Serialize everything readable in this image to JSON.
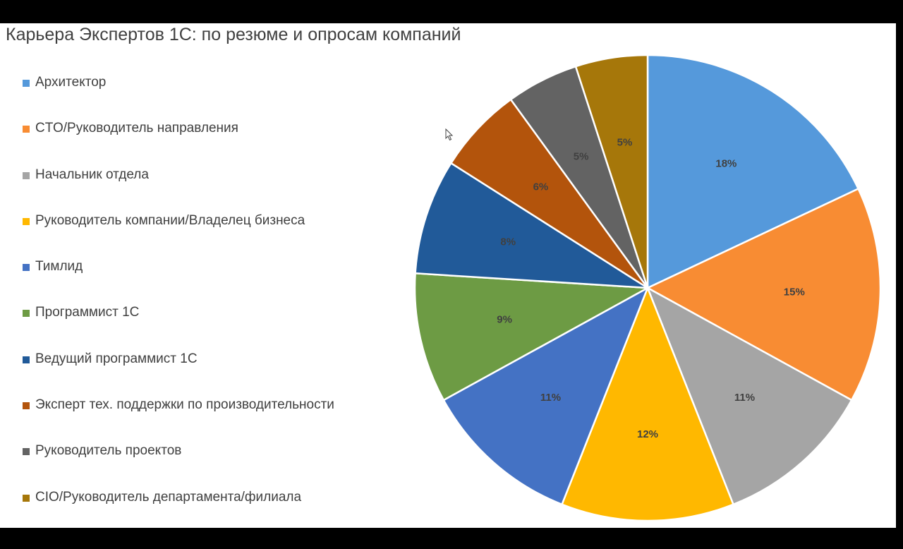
{
  "chart_data": {
    "type": "pie",
    "title": "Карьера Экспертов 1С: по резюме и опросам компаний",
    "legend_position": "left",
    "slices": [
      {
        "label": "Архитектор",
        "value": 18,
        "display": "18%",
        "color": "#5599DB"
      },
      {
        "label": "CTO/Руководитель направления",
        "value": 15,
        "display": "15%",
        "color": "#F88C33"
      },
      {
        "label": "Начальник отдела",
        "value": 11,
        "display": "11%",
        "color": "#A5A5A5"
      },
      {
        "label": "Руководитель компании/Владелец бизнеса",
        "value": 12,
        "display": "12%",
        "color": "#FFB800"
      },
      {
        "label": "Тимлид",
        "value": 11,
        "display": "11%",
        "color": "#4472C4"
      },
      {
        "label": "Программист 1С",
        "value": 9,
        "display": "9%",
        "color": "#6D9B44"
      },
      {
        "label": "Ведущий программист 1С",
        "value": 8,
        "display": "8%",
        "color": "#215A99"
      },
      {
        "label": "Эксперт тех. поддержки по производительности",
        "value": 6,
        "display": "6%",
        "color": "#B3540C"
      },
      {
        "label": "Руководитель проектов",
        "value": 5,
        "display": "5%",
        "color": "#636363"
      },
      {
        "label": "CIO/Руководитель департамента/филиала",
        "value": 5,
        "display": "5%",
        "color": "#A6770A"
      }
    ]
  }
}
